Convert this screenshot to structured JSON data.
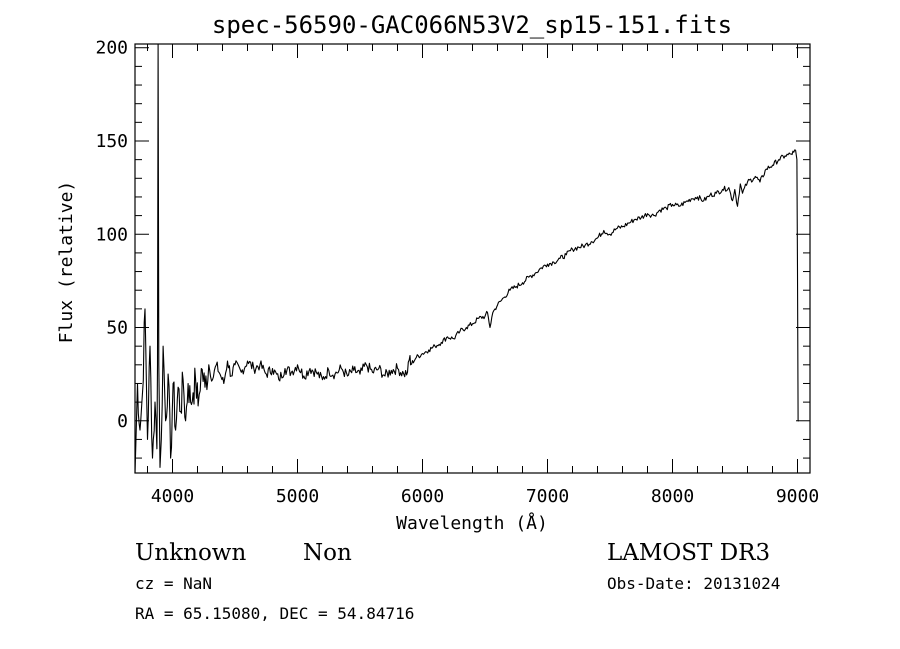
{
  "chart_data": {
    "type": "line",
    "title": "spec-56590-GAC066N53V2_sp15-151.fits",
    "xlabel": "Wavelength (Å)",
    "ylabel": "Flux (relative)",
    "xlim": [
      3700,
      9100
    ],
    "ylim": [
      -28,
      202
    ],
    "x_ticks": [
      4000,
      5000,
      6000,
      7000,
      8000,
      9000
    ],
    "y_ticks": [
      0,
      50,
      100,
      150,
      200
    ],
    "series": [
      {
        "name": "flux",
        "x": [
          3700,
          3720,
          3740,
          3760,
          3780,
          3800,
          3820,
          3840,
          3860,
          3875,
          3880,
          3885,
          3890,
          3895,
          3900,
          3910,
          3925,
          3945,
          3965,
          3985,
          4005,
          4025,
          4045,
          4065,
          4085,
          4105,
          4125,
          4145,
          4165,
          4185,
          4205,
          4230,
          4260,
          4290,
          4320,
          4350,
          4380,
          4410,
          4440,
          4470,
          4500,
          4550,
          4600,
          4650,
          4700,
          4750,
          4800,
          4850,
          4900,
          4950,
          5000,
          5050,
          5100,
          5150,
          5200,
          5250,
          5300,
          5350,
          5400,
          5450,
          5500,
          5550,
          5600,
          5650,
          5700,
          5750,
          5800,
          5850,
          5880,
          5900,
          5905,
          5950,
          6000,
          6050,
          6100,
          6150,
          6200,
          6250,
          6300,
          6350,
          6400,
          6450,
          6500,
          6520,
          6540,
          6562,
          6580,
          6600,
          6650,
          6700,
          6750,
          6800,
          6850,
          6900,
          6950,
          7000,
          7050,
          7100,
          7150,
          7200,
          7250,
          7300,
          7350,
          7400,
          7450,
          7500,
          7550,
          7600,
          7650,
          7700,
          7750,
          7800,
          7850,
          7900,
          7950,
          8000,
          8050,
          8100,
          8150,
          8200,
          8250,
          8300,
          8350,
          8400,
          8450,
          8480,
          8498,
          8520,
          8542,
          8560,
          8600,
          8650,
          8662,
          8700,
          8750,
          8800,
          8850,
          8900,
          8950,
          8970,
          8985,
          8995,
          9000,
          9005,
          9010
        ],
        "values": [
          -30,
          20,
          -5,
          15,
          60,
          -10,
          40,
          -20,
          10,
          -15,
          30,
          202,
          30,
          5,
          -25,
          -10,
          40,
          0,
          25,
          -20,
          20,
          -5,
          18,
          5,
          22,
          0,
          20,
          10,
          15,
          22,
          8,
          28,
          18,
          30,
          22,
          30,
          25,
          20,
          32,
          24,
          30,
          26,
          32,
          28,
          30,
          25,
          28,
          22,
          28,
          26,
          30,
          24,
          28,
          26,
          22,
          27,
          25,
          28,
          24,
          27,
          25,
          30,
          26,
          28,
          24,
          27,
          28,
          25,
          26,
          35,
          30,
          34,
          36,
          38,
          40,
          42,
          45,
          44,
          48,
          50,
          52,
          55,
          56,
          58,
          50,
          58,
          60,
          62,
          66,
          70,
          72,
          74,
          77,
          79,
          82,
          84,
          85,
          87,
          89,
          92,
          93,
          94,
          96,
          98,
          102,
          100,
          103,
          104,
          106,
          108,
          109,
          111,
          110,
          113,
          114,
          116,
          115,
          117,
          119,
          120,
          118,
          121,
          122,
          124,
          125,
          118,
          124,
          115,
          127,
          122,
          128,
          130,
          131,
          128,
          135,
          137,
          140,
          142,
          143,
          144,
          145,
          140,
          80,
          0,
          0
        ]
      }
    ]
  },
  "annotations": {
    "object_class": "Unknown",
    "object_subclass": "Non",
    "redshift": "cz = NaN",
    "coords": "RA =  65.15080, DEC =  54.84716",
    "survey": "LAMOST DR3",
    "obs_date": "Obs-Date: 20131024"
  },
  "colors": {
    "line": "#000000",
    "axes": "#000000",
    "background": "#ffffff"
  }
}
